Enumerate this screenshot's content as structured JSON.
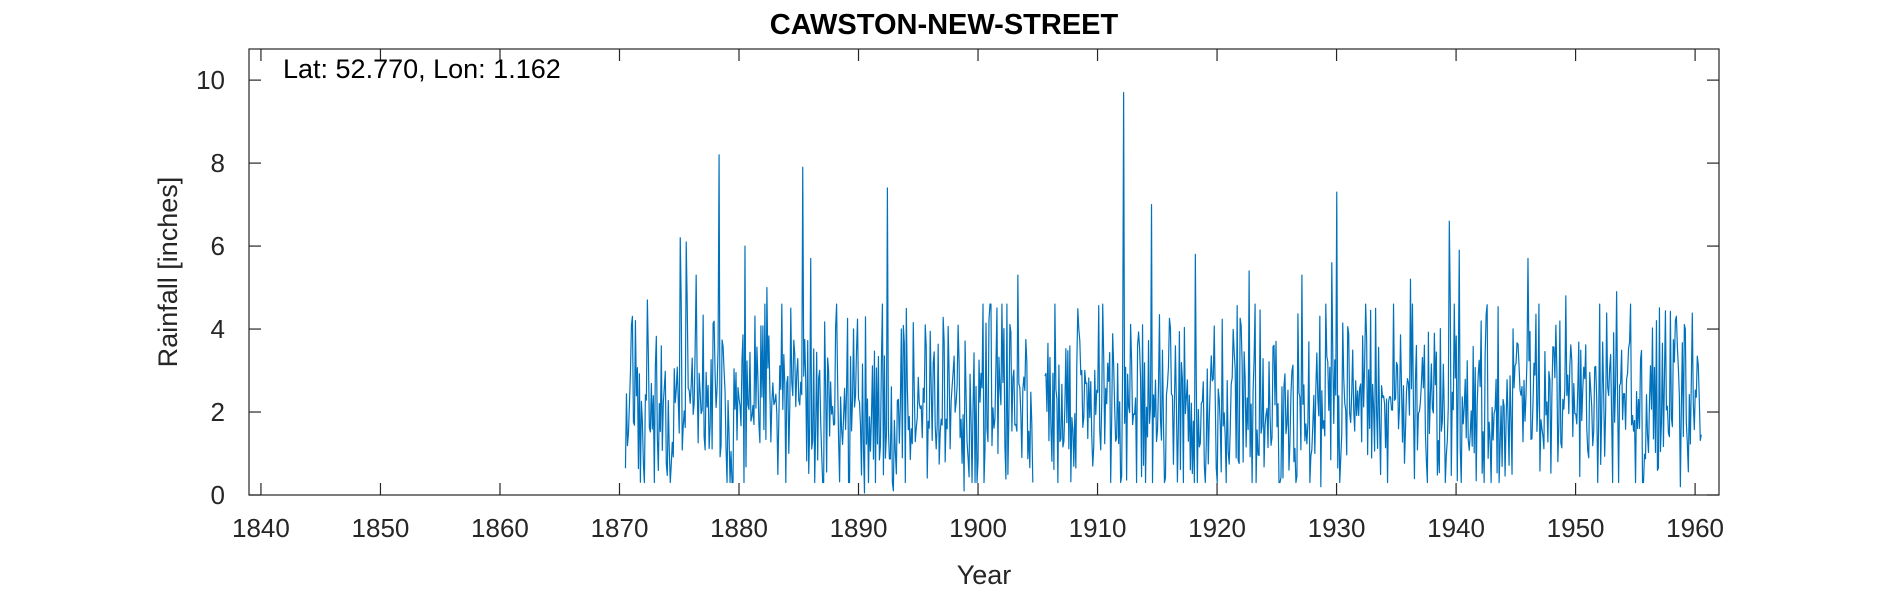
{
  "chart_data": {
    "type": "line",
    "title": "CAWSTON-NEW-STREET",
    "xlabel": "Year",
    "ylabel": "Rainfall [inches]",
    "annotation": "Lat: 52.770, Lon: 1.162",
    "xlim": [
      1839,
      1962
    ],
    "ylim": [
      0,
      10.75
    ],
    "xticks": [
      1840,
      1850,
      1860,
      1870,
      1880,
      1890,
      1900,
      1910,
      1920,
      1930,
      1940,
      1950,
      1960
    ],
    "yticks": [
      0,
      2,
      4,
      6,
      8,
      10
    ],
    "grid": false,
    "series": [
      {
        "color": "#0072BD",
        "segments": [
          {
            "start_year": 1870.5,
            "end_year": 1904.6,
            "seed": 11
          },
          {
            "start_year": 1905.6,
            "end_year": 1960.5,
            "seed": 29
          }
        ],
        "peaks": [
          {
            "x": 1871.0,
            "y": 4.1
          },
          {
            "x": 1872.3,
            "y": 4.7
          },
          {
            "x": 1875.1,
            "y": 6.2
          },
          {
            "x": 1875.6,
            "y": 6.1
          },
          {
            "x": 1876.4,
            "y": 5.3
          },
          {
            "x": 1878.3,
            "y": 8.2
          },
          {
            "x": 1880.5,
            "y": 6.0
          },
          {
            "x": 1882.3,
            "y": 5.0
          },
          {
            "x": 1885.3,
            "y": 7.9
          },
          {
            "x": 1886.0,
            "y": 5.7
          },
          {
            "x": 1888.2,
            "y": 4.6
          },
          {
            "x": 1892.4,
            "y": 7.4
          },
          {
            "x": 1895.6,
            "y": 4.1
          },
          {
            "x": 1903.3,
            "y": 5.3
          },
          {
            "x": 1912.2,
            "y": 9.7
          },
          {
            "x": 1914.5,
            "y": 7.0
          },
          {
            "x": 1918.2,
            "y": 5.8
          },
          {
            "x": 1922.7,
            "y": 5.4
          },
          {
            "x": 1927.1,
            "y": 5.3
          },
          {
            "x": 1929.6,
            "y": 5.6
          },
          {
            "x": 1930.0,
            "y": 7.3
          },
          {
            "x": 1933.3,
            "y": 4.5
          },
          {
            "x": 1936.2,
            "y": 5.2
          },
          {
            "x": 1939.4,
            "y": 6.6
          },
          {
            "x": 1940.3,
            "y": 5.9
          },
          {
            "x": 1946.0,
            "y": 5.7
          },
          {
            "x": 1949.2,
            "y": 4.8
          },
          {
            "x": 1953.4,
            "y": 4.9
          },
          {
            "x": 1956.8,
            "y": 4.2
          },
          {
            "x": 1959.2,
            "y": 4.0
          }
        ],
        "troughs": [
          {
            "x": 1890.5,
            "y": 0.05
          },
          {
            "x": 1892.9,
            "y": 0.1
          },
          {
            "x": 1898.8,
            "y": 0.1
          },
          {
            "x": 1928.7,
            "y": 0.2
          },
          {
            "x": 1958.8,
            "y": 0.2
          }
        ]
      }
    ]
  }
}
